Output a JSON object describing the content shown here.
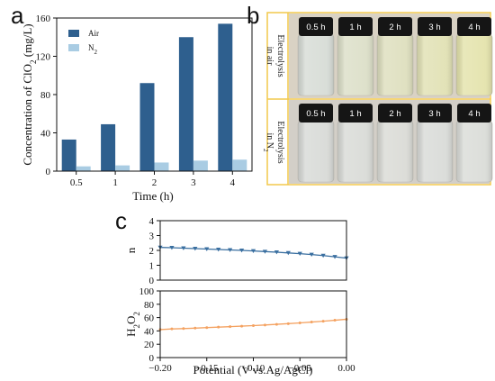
{
  "panel_labels": {
    "a": "a",
    "b": "b",
    "c": "c"
  },
  "chart_data": [
    {
      "type": "bar",
      "panel": "a",
      "categories": [
        "0.5",
        "1",
        "2",
        "3",
        "4"
      ],
      "series": [
        {
          "name": "Air",
          "values": [
            33,
            49,
            92,
            140,
            154
          ],
          "color": "#2e5f8e"
        },
        {
          "name": "N",
          "name_sub": "2",
          "values": [
            5,
            6,
            9,
            11,
            12
          ],
          "color": "#a9cce3"
        }
      ],
      "xlabel": "Time (h)",
      "ylabel": {
        "pre": "Concentration of ClO",
        "sub": "2",
        "post": " (mg/L)"
      },
      "ylim": [
        0,
        160
      ],
      "yticks": [
        0,
        40,
        80,
        120,
        160
      ],
      "legend_position": "top-left",
      "grid": false
    },
    {
      "type": "line",
      "panel": "c-top",
      "x": [
        -0.2,
        -0.1875,
        -0.175,
        -0.1625,
        -0.15,
        -0.1375,
        -0.125,
        -0.1125,
        -0.1,
        -0.0875,
        -0.075,
        -0.0625,
        -0.05,
        -0.0375,
        -0.025,
        -0.0125,
        0.0
      ],
      "y": [
        2.2,
        2.18,
        2.15,
        2.12,
        2.09,
        2.06,
        2.03,
        2.0,
        1.96,
        1.92,
        1.88,
        1.83,
        1.78,
        1.72,
        1.65,
        1.57,
        1.48
      ],
      "marker": "triangle-down",
      "color": "#3a6fa0",
      "ylabel": "n",
      "xlim": [
        -0.2,
        0.0
      ],
      "ylim": [
        0,
        4
      ],
      "yticks": [
        0,
        1,
        2,
        3,
        4
      ],
      "grid": false
    },
    {
      "type": "line",
      "panel": "c-bottom",
      "x": [
        -0.2,
        -0.1875,
        -0.175,
        -0.1625,
        -0.15,
        -0.1375,
        -0.125,
        -0.1125,
        -0.1,
        -0.0875,
        -0.075,
        -0.0625,
        -0.05,
        -0.0375,
        -0.025,
        -0.0125,
        0.0
      ],
      "y": [
        42,
        43,
        43.5,
        44.2,
        45,
        45.7,
        46.4,
        47.2,
        48,
        48.9,
        49.9,
        50.9,
        52,
        53.3,
        54.6,
        56,
        57.5
      ],
      "marker": "circle",
      "color": "#f4a261",
      "ylabel": {
        "pre": "H",
        "sub1": "2",
        "mid": "O",
        "sub2": "2"
      },
      "xlabel": "Potential (V vs.Ag/AgCl)",
      "xlim": [
        -0.2,
        0.0
      ],
      "xticks": [
        "-0.20",
        "-0.15",
        "-0.10",
        "-0.05",
        "0.00"
      ],
      "ylim": [
        0,
        100
      ],
      "yticks": [
        0,
        20,
        40,
        60,
        80,
        100
      ],
      "grid": false
    }
  ],
  "photo_panel": {
    "frame_color": "#f2c94c",
    "rows": [
      {
        "label_lines": [
          "Electrolysis",
          "in air"
        ],
        "label_sub": "",
        "caps": [
          "0.5 h",
          "1 h",
          "2 h",
          "3 h",
          "4 h"
        ],
        "liquid_colors": [
          "#d7dcd6",
          "#dcdfc8",
          "#dedfbe",
          "#e1e1b4",
          "#e4e3ac"
        ]
      },
      {
        "label_lines": [
          "Electrolysis",
          "in N"
        ],
        "label_sub": "2",
        "caps": [
          "0.5 h",
          "1 h",
          "2 h",
          "3 h",
          "4 h"
        ],
        "liquid_colors": [
          "#d8dad7",
          "#d9dbd7",
          "#dadbd6",
          "#d9dbd8",
          "#dadcd8"
        ]
      }
    ]
  }
}
